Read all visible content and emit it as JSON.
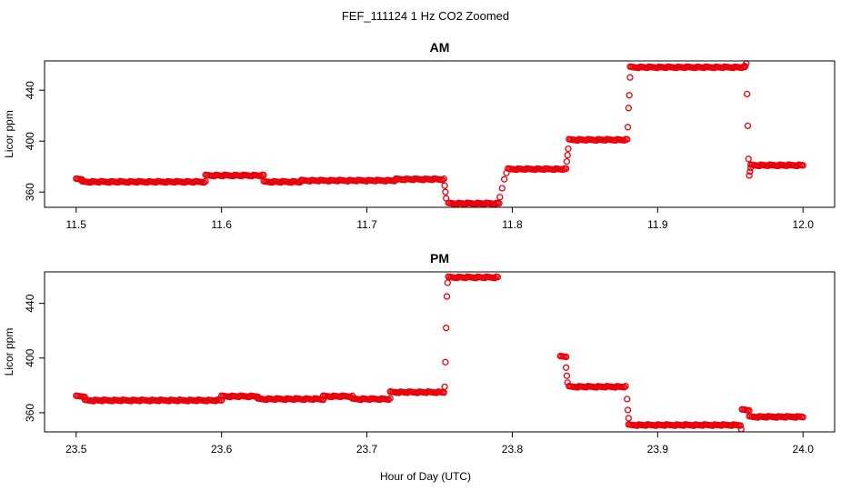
{
  "figure": {
    "title": "FEF_111124  1 Hz CO2 Zoomed",
    "xlabel": "Hour of Day (UTC)"
  },
  "colors": {
    "points": "#e8000b",
    "axes": "#000000"
  },
  "chart_data": [
    {
      "type": "scatter",
      "title": "AM",
      "xlabel": "Hour of Day (UTC)",
      "ylabel": "Licor ppm",
      "xlim": [
        11.5,
        12.0
      ],
      "ylim": [
        348,
        463
      ],
      "xticks": [
        "11.5",
        "11.6",
        "11.7",
        "11.8",
        "11.9",
        "12.0"
      ],
      "yticks": [
        "360",
        "400",
        "440"
      ],
      "marker": "open-circle",
      "grid": false,
      "series": [
        {
          "segments": [
            {
              "x": [
                11.5,
                11.504
              ],
              "y": [
                370,
                370
              ]
            },
            {
              "x": [
                11.504,
                11.589
              ],
              "y": [
                368,
                368
              ]
            },
            {
              "x": [
                11.589,
                11.629
              ],
              "y": [
                373,
                373
              ]
            },
            {
              "x": [
                11.629,
                11.655
              ],
              "y": [
                368,
                368
              ]
            },
            {
              "x": [
                11.655,
                11.72
              ],
              "y": [
                369,
                369
              ]
            },
            {
              "x": [
                11.72,
                11.753
              ],
              "y": [
                370,
                370
              ]
            },
            {
              "x": [
                11.756,
                11.791
              ],
              "y": [
                351,
                351
              ]
            },
            {
              "x": [
                11.797,
                11.837
              ],
              "y": [
                378,
                378
              ]
            },
            {
              "x": [
                11.839,
                11.879
              ],
              "y": [
                401,
                401
              ]
            },
            {
              "x": [
                11.881,
                11.96
              ],
              "y": [
                458,
                458
              ]
            },
            {
              "x": [
                11.964,
                12.0
              ],
              "y": [
                381,
                381
              ]
            }
          ],
          "transition_points": [
            {
              "x": 11.7535,
              "y": 365
            },
            {
              "x": 11.754,
              "y": 360
            },
            {
              "x": 11.7545,
              "y": 355
            },
            {
              "x": 11.7915,
              "y": 356
            },
            {
              "x": 11.793,
              "y": 363
            },
            {
              "x": 11.7945,
              "y": 370
            },
            {
              "x": 11.796,
              "y": 375
            },
            {
              "x": 11.8375,
              "y": 384
            },
            {
              "x": 11.838,
              "y": 389
            },
            {
              "x": 11.8385,
              "y": 394
            },
            {
              "x": 11.8795,
              "y": 411
            },
            {
              "x": 11.88,
              "y": 426
            },
            {
              "x": 11.8805,
              "y": 436
            },
            {
              "x": 11.881,
              "y": 450
            },
            {
              "x": 11.96,
              "y": 459
            },
            {
              "x": 11.961,
              "y": 461
            },
            {
              "x": 11.9615,
              "y": 437
            },
            {
              "x": 11.962,
              "y": 412
            },
            {
              "x": 11.9625,
              "y": 386
            },
            {
              "x": 11.963,
              "y": 373
            },
            {
              "x": 11.9635,
              "y": 376
            },
            {
              "x": 11.964,
              "y": 379
            }
          ]
        }
      ]
    },
    {
      "type": "scatter",
      "title": "PM",
      "xlabel": "Hour of Day (UTC)",
      "ylabel": "Licor ppm",
      "xlim": [
        23.5,
        24.0
      ],
      "ylim": [
        346,
        463
      ],
      "xticks": [
        "23.5",
        "23.6",
        "23.7",
        "23.8",
        "23.9",
        "24.0"
      ],
      "yticks": [
        "360",
        "400",
        "440"
      ],
      "marker": "open-circle",
      "grid": false,
      "series": [
        {
          "segments": [
            {
              "x": [
                23.5,
                23.506
              ],
              "y": [
                372,
                372
              ]
            },
            {
              "x": [
                23.506,
                23.6
              ],
              "y": [
                369,
                369
              ]
            },
            {
              "x": [
                23.6,
                23.625
              ],
              "y": [
                372,
                372
              ]
            },
            {
              "x": [
                23.625,
                23.67
              ],
              "y": [
                370,
                370
              ]
            },
            {
              "x": [
                23.67,
                23.69
              ],
              "y": [
                372,
                372
              ]
            },
            {
              "x": [
                23.69,
                23.716
              ],
              "y": [
                370,
                370
              ]
            },
            {
              "x": [
                23.716,
                23.753
              ],
              "y": [
                375,
                375
              ]
            },
            {
              "x": [
                23.756,
                23.79
              ],
              "y": [
                459,
                459
              ]
            },
            {
              "x": [
                23.833,
                23.837
              ],
              "y": [
                401,
                401
              ]
            },
            {
              "x": [
                23.839,
                23.878
              ],
              "y": [
                379,
                379
              ]
            },
            {
              "x": [
                23.88,
                23.957
              ],
              "y": [
                351,
                351
              ]
            },
            {
              "x": [
                23.958,
                23.963
              ],
              "y": [
                362,
                362
              ]
            },
            {
              "x": [
                23.963,
                24.0
              ],
              "y": [
                357,
                357
              ]
            }
          ],
          "transition_points": [
            {
              "x": 23.7535,
              "y": 379
            },
            {
              "x": 23.754,
              "y": 397
            },
            {
              "x": 23.7545,
              "y": 422
            },
            {
              "x": 23.755,
              "y": 445
            },
            {
              "x": 23.7555,
              "y": 455
            },
            {
              "x": 23.837,
              "y": 393
            },
            {
              "x": 23.8375,
              "y": 387
            },
            {
              "x": 23.838,
              "y": 382
            },
            {
              "x": 23.879,
              "y": 370
            },
            {
              "x": 23.8795,
              "y": 362
            },
            {
              "x": 23.88,
              "y": 356
            },
            {
              "x": 23.9575,
              "y": 348
            }
          ]
        }
      ]
    }
  ]
}
